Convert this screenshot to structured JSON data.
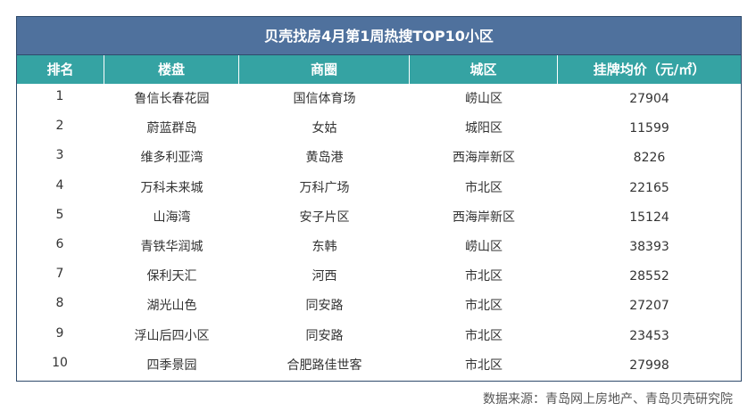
{
  "title": "贝壳找房4月第1周热搜TOP10小区",
  "headers": {
    "rank": "排名",
    "name": "楼盘",
    "business_area": "商圈",
    "district": "城区",
    "price": "挂牌均价（元/㎡）"
  },
  "rows": [
    {
      "rank": "1",
      "name": "鲁信长春花园",
      "business_area": "国信体育场",
      "district": "崂山区",
      "price": "27904"
    },
    {
      "rank": "2",
      "name": "蔚蓝群岛",
      "business_area": "女姑",
      "district": "城阳区",
      "price": "11599"
    },
    {
      "rank": "3",
      "name": "维多利亚湾",
      "business_area": "黄岛港",
      "district": "西海岸新区",
      "price": "8226"
    },
    {
      "rank": "4",
      "name": "万科未来城",
      "business_area": "万科广场",
      "district": "市北区",
      "price": "22165"
    },
    {
      "rank": "5",
      "name": "山海湾",
      "business_area": "安子片区",
      "district": "西海岸新区",
      "price": "15124"
    },
    {
      "rank": "6",
      "name": "青铁华润城",
      "business_area": "东韩",
      "district": "崂山区",
      "price": "38393"
    },
    {
      "rank": "7",
      "name": "保利天汇",
      "business_area": "河西",
      "district": "市北区",
      "price": "28552"
    },
    {
      "rank": "8",
      "name": "湖光山色",
      "business_area": "同安路",
      "district": "市北区",
      "price": "27207"
    },
    {
      "rank": "9",
      "name": "浮山后四小区",
      "business_area": "同安路",
      "district": "市北区",
      "price": "23453"
    },
    {
      "rank": "10",
      "name": "四季景园",
      "business_area": "合肥路佳世客",
      "district": "市北区",
      "price": "27998"
    }
  ],
  "source": "数据来源：青岛网上房地产、青岛贝壳研究院",
  "colors": {
    "title_bg": "#4f719d",
    "header_bg": "#35a3a3",
    "text": "#333333"
  }
}
